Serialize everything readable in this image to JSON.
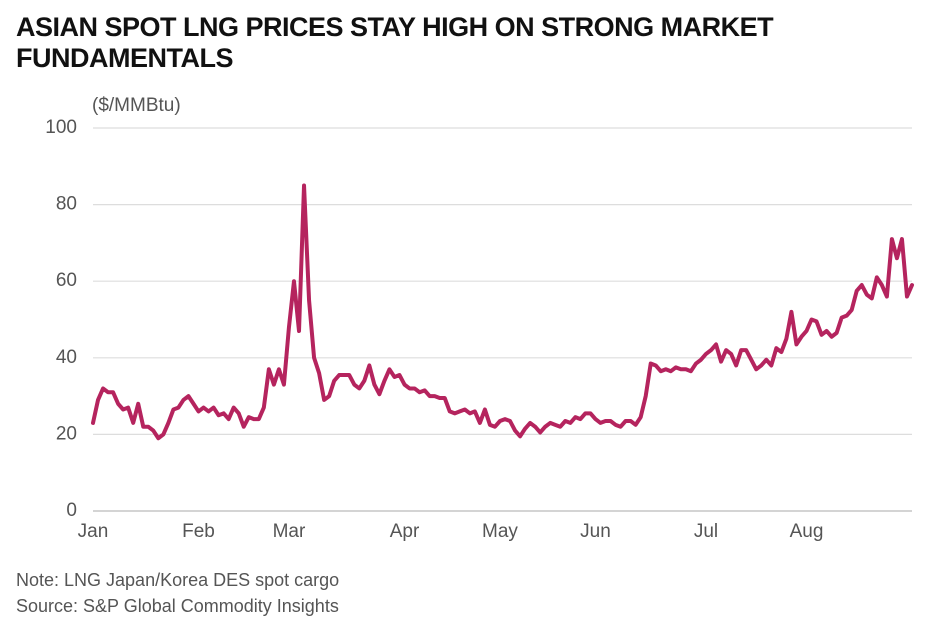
{
  "chart_data": {
    "type": "line",
    "title": "ASIAN SPOT LNG PRICES STAY HIGH ON STRONG MARKET FUNDAMENTALS",
    "y_label": "($/MMBtu)",
    "note": "Note: LNG Japan/Korea DES spot cargo",
    "source": "Source: S&P Global Commodity Insights",
    "color": "#b5245e",
    "grid": true,
    "ylim": [
      0,
      100
    ],
    "yticks": [
      0,
      20,
      40,
      60,
      80,
      100
    ],
    "categories": [
      "Jan",
      null,
      null,
      null,
      null,
      null,
      null,
      null,
      null,
      null,
      null,
      null,
      null,
      null,
      null,
      null,
      null,
      null,
      null,
      null,
      null,
      "Feb",
      null,
      null,
      null,
      null,
      null,
      null,
      null,
      null,
      null,
      null,
      null,
      null,
      null,
      null,
      null,
      null,
      null,
      "Mar",
      null,
      null,
      null,
      null,
      null,
      null,
      null,
      null,
      null,
      null,
      null,
      null,
      null,
      null,
      null,
      null,
      null,
      null,
      null,
      null,
      null,
      null,
      "Apr",
      null,
      null,
      null,
      null,
      null,
      null,
      null,
      null,
      null,
      null,
      null,
      null,
      null,
      null,
      null,
      null,
      null,
      null,
      "May",
      null,
      null,
      null,
      null,
      null,
      null,
      null,
      null,
      null,
      null,
      null,
      null,
      null,
      null,
      null,
      null,
      null,
      null,
      "Jun",
      null,
      null,
      null,
      null,
      null,
      null,
      null,
      null,
      null,
      null,
      null,
      null,
      null,
      null,
      null,
      null,
      null,
      null,
      null,
      null,
      null,
      "Jul",
      null,
      null,
      null,
      null,
      null,
      null,
      null,
      null,
      null,
      null,
      null,
      null,
      null,
      null,
      null,
      null,
      null,
      null,
      null,
      "Aug",
      null,
      null,
      null,
      null,
      null,
      null,
      null,
      null,
      null,
      null,
      null,
      null,
      null,
      null,
      null,
      null,
      null,
      null,
      null,
      null,
      null
    ],
    "values": [
      23,
      29,
      32,
      31,
      31,
      28,
      26.5,
      27,
      23,
      28,
      22,
      22,
      21,
      19,
      20,
      23,
      26.5,
      27,
      29,
      30,
      28,
      26,
      27,
      26,
      27,
      25,
      25.5,
      24,
      27,
      25.5,
      22,
      24.5,
      24,
      24,
      27,
      37,
      33,
      37,
      33,
      48,
      60,
      47,
      85,
      55,
      40,
      36,
      29,
      30,
      34,
      35.5,
      35.5,
      35.5,
      33,
      32,
      34,
      38,
      33,
      30.5,
      34,
      37,
      35,
      35.5,
      33,
      32,
      32,
      31,
      31.5,
      30,
      30,
      29.5,
      29.5,
      26,
      25.5,
      26,
      26.5,
      25.5,
      26,
      23,
      26.5,
      22.5,
      22,
      23.5,
      24,
      23.5,
      21,
      19.5,
      21.5,
      23,
      22,
      20.5,
      22,
      23,
      22.5,
      22,
      23.5,
      23,
      24.5,
      24,
      25.5,
      25.5,
      24,
      23,
      23.5,
      23.5,
      22.5,
      22,
      23.5,
      23.5,
      22.5,
      24.5,
      30,
      38.5,
      38,
      36.5,
      37,
      36.5,
      37.5,
      37,
      37,
      36.5,
      38.5,
      39.5,
      41,
      42,
      43.5,
      39,
      42,
      41,
      38,
      42,
      42,
      39.5,
      37,
      38,
      39.5,
      38,
      42.5,
      41.5,
      45,
      52,
      43.5,
      45.5,
      47,
      50,
      49.5,
      46,
      47,
      45.5,
      46.5,
      50.5,
      51,
      52.5,
      57.5,
      59,
      56.5,
      55.5,
      61,
      59,
      56,
      71,
      66,
      71,
      56,
      59
    ]
  }
}
